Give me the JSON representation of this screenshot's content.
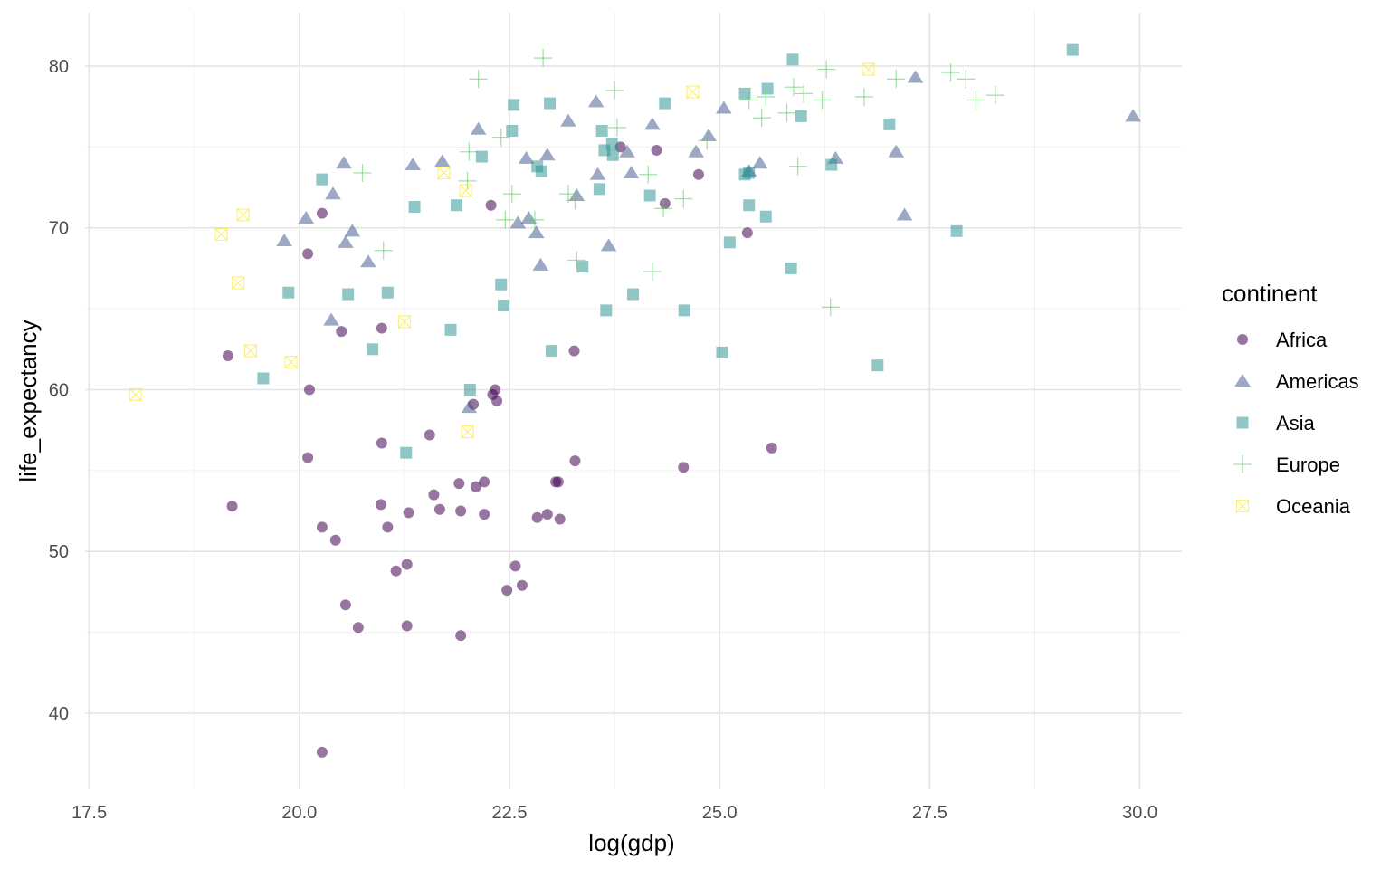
{
  "chart_data": {
    "type": "scatter",
    "xlabel": "log(gdp)",
    "ylabel": "life_expectancy",
    "xlim": [
      17.45,
      30.5
    ],
    "ylim": [
      35.3,
      83.3
    ],
    "x_ticks": [
      17.5,
      20.0,
      22.5,
      25.0,
      27.5,
      30.0
    ],
    "x_tick_labels": [
      "17.5",
      "20.0",
      "22.5",
      "25.0",
      "27.5",
      "30.0"
    ],
    "y_ticks": [
      40,
      50,
      60,
      70,
      80
    ],
    "y_tick_labels": [
      "40",
      "50",
      "60",
      "70",
      "80"
    ],
    "grid": true,
    "legend": {
      "title": "continent",
      "position": "right"
    },
    "series": [
      {
        "name": "Africa",
        "shape": "circle",
        "color": "#440154",
        "points": [
          [
            20.27,
            70.9
          ],
          [
            20.1,
            68.4
          ],
          [
            19.15,
            62.1
          ],
          [
            20.12,
            60.0
          ],
          [
            20.5,
            63.6
          ],
          [
            20.98,
            63.8
          ],
          [
            20.1,
            55.8
          ],
          [
            19.2,
            52.8
          ],
          [
            20.27,
            51.5
          ],
          [
            20.43,
            50.7
          ],
          [
            20.55,
            46.7
          ],
          [
            20.7,
            45.3
          ],
          [
            20.97,
            52.9
          ],
          [
            20.98,
            56.7
          ],
          [
            21.05,
            51.5
          ],
          [
            21.15,
            48.8
          ],
          [
            21.28,
            49.2
          ],
          [
            21.3,
            52.4
          ],
          [
            21.28,
            45.4
          ],
          [
            21.55,
            57.2
          ],
          [
            21.6,
            53.5
          ],
          [
            21.67,
            52.6
          ],
          [
            21.9,
            54.2
          ],
          [
            21.92,
            52.5
          ],
          [
            21.92,
            44.8
          ],
          [
            22.07,
            59.1
          ],
          [
            22.1,
            54.0
          ],
          [
            22.2,
            54.3
          ],
          [
            22.2,
            52.3
          ],
          [
            22.28,
            71.4
          ],
          [
            22.3,
            59.7
          ],
          [
            22.33,
            60.0
          ],
          [
            22.35,
            59.3
          ],
          [
            22.47,
            47.6
          ],
          [
            22.57,
            49.1
          ],
          [
            22.65,
            47.9
          ],
          [
            22.83,
            52.1
          ],
          [
            22.95,
            52.3
          ],
          [
            23.1,
            52.0
          ],
          [
            23.05,
            54.3
          ],
          [
            23.08,
            54.3
          ],
          [
            23.27,
            62.4
          ],
          [
            23.28,
            55.6
          ],
          [
            23.82,
            75.0
          ],
          [
            24.25,
            74.8
          ],
          [
            24.35,
            71.5
          ],
          [
            24.75,
            73.3
          ],
          [
            24.57,
            55.2
          ],
          [
            25.33,
            69.7
          ],
          [
            25.62,
            56.4
          ],
          [
            20.27,
            37.6
          ]
        ]
      },
      {
        "name": "Americas",
        "shape": "triangle",
        "color": "#3b528b",
        "points": [
          [
            19.82,
            69.2
          ],
          [
            20.08,
            70.6
          ],
          [
            20.4,
            72.1
          ],
          [
            20.53,
            74.0
          ],
          [
            20.38,
            64.3
          ],
          [
            20.55,
            69.1
          ],
          [
            20.63,
            69.8
          ],
          [
            20.82,
            67.9
          ],
          [
            21.35,
            73.9
          ],
          [
            21.7,
            74.1
          ],
          [
            22.02,
            58.9
          ],
          [
            22.13,
            76.1
          ],
          [
            22.6,
            70.3
          ],
          [
            22.7,
            74.3
          ],
          [
            22.73,
            70.6
          ],
          [
            22.82,
            69.7
          ],
          [
            22.87,
            67.7
          ],
          [
            22.95,
            74.5
          ],
          [
            23.2,
            76.6
          ],
          [
            23.3,
            72.0
          ],
          [
            23.53,
            77.8
          ],
          [
            23.55,
            73.3
          ],
          [
            23.68,
            68.9
          ],
          [
            23.9,
            74.7
          ],
          [
            23.95,
            73.4
          ],
          [
            24.2,
            76.4
          ],
          [
            24.72,
            74.7
          ],
          [
            24.87,
            75.7
          ],
          [
            25.05,
            77.4
          ],
          [
            25.35,
            73.5
          ],
          [
            25.48,
            74.0
          ],
          [
            26.38,
            74.3
          ],
          [
            27.1,
            74.7
          ],
          [
            27.2,
            70.8
          ],
          [
            27.33,
            79.3
          ],
          [
            29.92,
            76.9
          ]
        ]
      },
      {
        "name": "Asia",
        "shape": "square",
        "color": "#21908d",
        "points": [
          [
            20.27,
            73.0
          ],
          [
            19.87,
            66.0
          ],
          [
            19.57,
            60.7
          ],
          [
            20.58,
            65.9
          ],
          [
            20.87,
            62.5
          ],
          [
            21.05,
            66.0
          ],
          [
            21.27,
            56.1
          ],
          [
            21.37,
            71.3
          ],
          [
            21.8,
            63.7
          ],
          [
            21.87,
            71.4
          ],
          [
            22.03,
            60.0
          ],
          [
            22.17,
            74.4
          ],
          [
            22.4,
            66.5
          ],
          [
            22.43,
            65.2
          ],
          [
            22.53,
            76.0
          ],
          [
            22.55,
            77.6
          ],
          [
            22.83,
            73.8
          ],
          [
            22.88,
            73.5
          ],
          [
            22.98,
            77.7
          ],
          [
            23.0,
            62.4
          ],
          [
            23.37,
            67.6
          ],
          [
            23.57,
            72.4
          ],
          [
            23.6,
            76.0
          ],
          [
            23.63,
            74.8
          ],
          [
            23.65,
            64.9
          ],
          [
            23.72,
            75.2
          ],
          [
            23.73,
            74.5
          ],
          [
            23.97,
            65.9
          ],
          [
            24.17,
            72.0
          ],
          [
            24.35,
            77.7
          ],
          [
            24.58,
            64.9
          ],
          [
            25.03,
            62.3
          ],
          [
            25.12,
            69.1
          ],
          [
            25.3,
            78.3
          ],
          [
            25.3,
            73.3
          ],
          [
            25.35,
            71.4
          ],
          [
            25.35,
            73.4
          ],
          [
            25.55,
            70.7
          ],
          [
            25.57,
            78.6
          ],
          [
            25.85,
            67.5
          ],
          [
            25.87,
            80.4
          ],
          [
            25.97,
            76.9
          ],
          [
            26.33,
            73.9
          ],
          [
            26.88,
            61.5
          ],
          [
            27.02,
            76.4
          ],
          [
            27.82,
            69.8
          ],
          [
            29.2,
            81.0
          ]
        ]
      },
      {
        "name": "Europe",
        "shape": "cross",
        "color": "#5ec962",
        "points": [
          [
            20.75,
            73.4
          ],
          [
            21.0,
            68.6
          ],
          [
            22.0,
            72.9
          ],
          [
            22.02,
            74.7
          ],
          [
            22.13,
            79.2
          ],
          [
            22.4,
            75.6
          ],
          [
            22.45,
            70.5
          ],
          [
            22.53,
            72.1
          ],
          [
            22.8,
            70.5
          ],
          [
            22.9,
            80.5
          ],
          [
            23.2,
            72.1
          ],
          [
            23.28,
            71.7
          ],
          [
            23.3,
            68.0
          ],
          [
            23.75,
            78.5
          ],
          [
            23.78,
            76.2
          ],
          [
            24.15,
            73.3
          ],
          [
            24.2,
            67.3
          ],
          [
            24.33,
            71.2
          ],
          [
            24.57,
            71.8
          ],
          [
            24.85,
            75.4
          ],
          [
            25.35,
            77.9
          ],
          [
            25.5,
            76.8
          ],
          [
            25.55,
            78.1
          ],
          [
            25.8,
            77.1
          ],
          [
            25.88,
            78.7
          ],
          [
            25.93,
            73.8
          ],
          [
            26.0,
            78.3
          ],
          [
            26.22,
            77.9
          ],
          [
            26.27,
            79.8
          ],
          [
            26.32,
            65.1
          ],
          [
            26.72,
            78.1
          ],
          [
            27.1,
            79.2
          ],
          [
            27.75,
            79.6
          ],
          [
            27.93,
            79.2
          ],
          [
            28.05,
            77.9
          ],
          [
            28.28,
            78.2
          ]
        ]
      },
      {
        "name": "Oceania",
        "shape": "square-cross",
        "color": "#fde725",
        "points": [
          [
            18.05,
            59.7
          ],
          [
            19.07,
            69.6
          ],
          [
            19.27,
            66.6
          ],
          [
            19.33,
            70.8
          ],
          [
            19.42,
            62.4
          ],
          [
            19.9,
            61.7
          ],
          [
            21.25,
            64.2
          ],
          [
            21.72,
            73.4
          ],
          [
            21.98,
            72.3
          ],
          [
            22.0,
            57.4
          ],
          [
            24.68,
            78.4
          ],
          [
            26.77,
            79.8
          ]
        ]
      }
    ]
  }
}
